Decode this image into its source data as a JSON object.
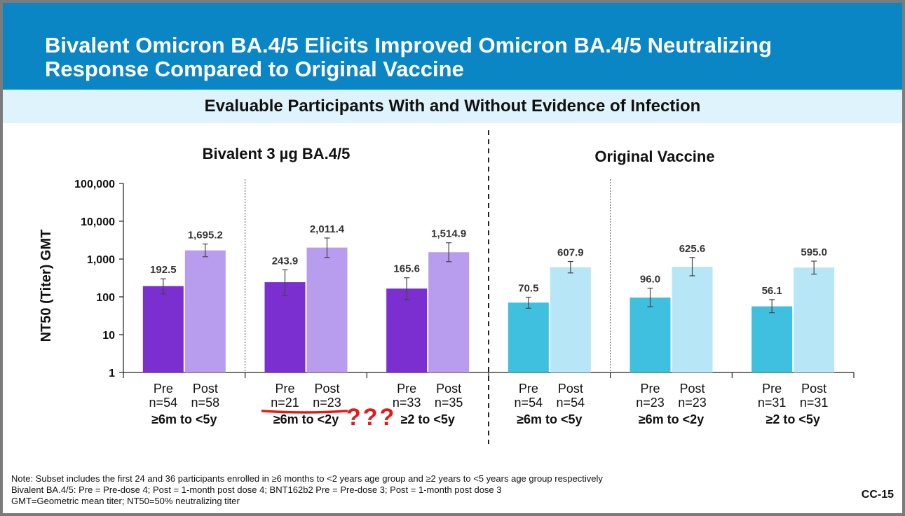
{
  "title": "Bivalent Omicron BA.4/5 Elicits Improved Omicron BA.4/5 Neutralizing Response Compared to Original Vaccine",
  "subtitle": "Evaluable Participants With and Without Evidence of Infection",
  "panels": {
    "bivalent": "Bivalent 3 µg BA.4/5",
    "original": "Original Vaccine"
  },
  "annotation": "???",
  "note_lines": [
    "Note: Subset includes the first 24 and 36 participants enrolled in ≥6 months to <2 years age group and ≥2 years to <5 years age group respectively",
    "Bivalent BA.4/5: Pre = Pre-dose 4; Post = 1-month post dose 4; BNT162b2 Pre = Pre-dose 3; Post = 1-month post dose 3",
    "GMT=Geometric mean titer; NT50=50% neutralizing titer"
  ],
  "slide_code": "CC-15",
  "colors": {
    "title_bar": "#0a86c5",
    "subtitle_bar": "#dff3fc",
    "bivalent_pre": "#7b2fd0",
    "bivalent_post": "#b89cee",
    "original_pre": "#3fc0df",
    "original_post": "#b7e6f6",
    "annotation": "#e31b1b"
  },
  "chart_data": {
    "type": "bar",
    "ylabel": "NT50 (Titer) GMT",
    "yscale": "log",
    "ylim": [
      1,
      100000
    ],
    "yticks": [
      1,
      10,
      100,
      1000,
      10000,
      100000
    ],
    "ytick_labels": [
      "1",
      "10",
      "100",
      "1,000",
      "10,000",
      "100,000"
    ],
    "groups": [
      {
        "panel": "bivalent",
        "label": "≥6m to <5y",
        "bars": [
          {
            "cat": "Pre",
            "n": "n=54",
            "value": 192.5,
            "label": "192.5",
            "ci": [
              120,
              300
            ],
            "kind": "pre"
          },
          {
            "cat": "Post",
            "n": "n=58",
            "value": 1695.2,
            "label": "1,695.2",
            "ci": [
              1150,
              2500
            ],
            "kind": "post"
          }
        ]
      },
      {
        "panel": "bivalent",
        "label": "≥6m to <2y",
        "bars": [
          {
            "cat": "Pre",
            "n": "n=21",
            "value": 243.9,
            "label": "243.9",
            "ci": [
              110,
              520
            ],
            "kind": "pre"
          },
          {
            "cat": "Post",
            "n": "n=23",
            "value": 2011.4,
            "label": "2,011.4",
            "ci": [
              1100,
              3600
            ],
            "kind": "post"
          }
        ]
      },
      {
        "panel": "bivalent",
        "label": "≥2 to <5y",
        "bars": [
          {
            "cat": "Pre",
            "n": "n=33",
            "value": 165.6,
            "label": "165.6",
            "ci": [
              85,
              320
            ],
            "kind": "pre"
          },
          {
            "cat": "Post",
            "n": "n=35",
            "value": 1514.9,
            "label": "1,514.9",
            "ci": [
              850,
              2700
            ],
            "kind": "post"
          }
        ]
      },
      {
        "panel": "original",
        "label": "≥6m to <5y",
        "bars": [
          {
            "cat": "Pre",
            "n": "n=54",
            "value": 70.5,
            "label": "70.5",
            "ci": [
              50,
              98
            ],
            "kind": "pre"
          },
          {
            "cat": "Post",
            "n": "n=54",
            "value": 607.9,
            "label": "607.9",
            "ci": [
              430,
              860
            ],
            "kind": "post"
          }
        ]
      },
      {
        "panel": "original",
        "label": "≥6m to <2y",
        "bars": [
          {
            "cat": "Pre",
            "n": "n=23",
            "value": 96.0,
            "label": "96.0",
            "ci": [
              55,
              170
            ],
            "kind": "pre"
          },
          {
            "cat": "Post",
            "n": "n=23",
            "value": 625.6,
            "label": "625.6",
            "ci": [
              360,
              1100
            ],
            "kind": "post"
          }
        ]
      },
      {
        "panel": "original",
        "label": "≥2 to <5y",
        "bars": [
          {
            "cat": "Pre",
            "n": "n=31",
            "value": 56.1,
            "label": "56.1",
            "ci": [
              38,
              85
            ],
            "kind": "pre"
          },
          {
            "cat": "Post",
            "n": "n=31",
            "value": 595.0,
            "label": "595.0",
            "ci": [
              400,
              880
            ],
            "kind": "post"
          }
        ]
      }
    ]
  }
}
